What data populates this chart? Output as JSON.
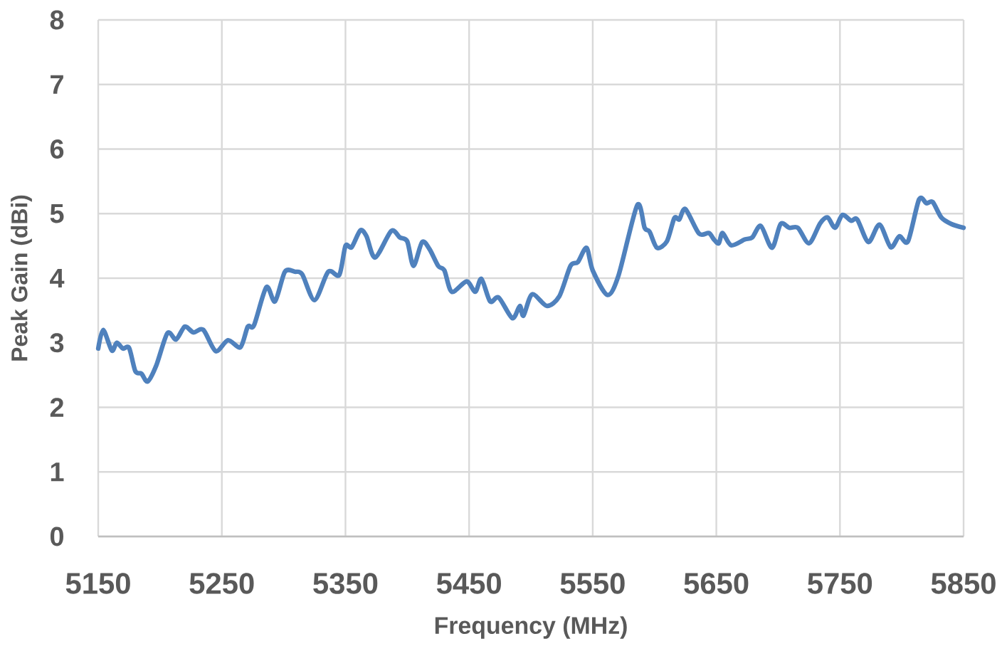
{
  "chart_data": {
    "type": "line",
    "xlabel": "Frequency (MHz)",
    "ylabel": "Peak Gain (dBi)",
    "x": [
      5150,
      5154,
      5161,
      5165,
      5170,
      5175,
      5180,
      5185,
      5190,
      5197,
      5206,
      5213,
      5220,
      5227,
      5235,
      5245,
      5255,
      5265,
      5271,
      5276,
      5286,
      5293,
      5301,
      5309,
      5315,
      5325,
      5336,
      5345,
      5350,
      5355,
      5362,
      5367,
      5374,
      5387,
      5394,
      5400,
      5405,
      5412,
      5418,
      5425,
      5430,
      5436,
      5448,
      5455,
      5460,
      5467,
      5474,
      5485,
      5491,
      5494,
      5501,
      5513,
      5523,
      5532,
      5538,
      5545,
      5550,
      5562,
      5571,
      5586,
      5592,
      5596,
      5602,
      5610,
      5616,
      5620,
      5625,
      5636,
      5644,
      5648,
      5652,
      5655,
      5662,
      5673,
      5679,
      5686,
      5695,
      5702,
      5709,
      5716,
      5725,
      5734,
      5740,
      5746,
      5752,
      5759,
      5764,
      5773,
      5782,
      5791,
      5798,
      5805,
      5814,
      5820,
      5825,
      5832,
      5840,
      5850
    ],
    "values": [
      2.91,
      3.2,
      2.88,
      3.0,
      2.91,
      2.92,
      2.56,
      2.52,
      2.4,
      2.65,
      3.15,
      3.05,
      3.25,
      3.16,
      3.2,
      2.87,
      3.04,
      2.93,
      3.25,
      3.27,
      3.86,
      3.64,
      4.1,
      4.1,
      4.06,
      3.66,
      4.1,
      4.05,
      4.5,
      4.48,
      4.74,
      4.65,
      4.32,
      4.73,
      4.63,
      4.57,
      4.19,
      4.56,
      4.45,
      4.19,
      4.12,
      3.79,
      3.95,
      3.79,
      3.99,
      3.64,
      3.7,
      3.38,
      3.57,
      3.42,
      3.75,
      3.57,
      3.72,
      4.19,
      4.25,
      4.47,
      4.12,
      3.74,
      4.05,
      5.13,
      4.78,
      4.72,
      4.47,
      4.57,
      4.93,
      4.91,
      5.07,
      4.69,
      4.7,
      4.6,
      4.54,
      4.7,
      4.51,
      4.6,
      4.63,
      4.81,
      4.47,
      4.84,
      4.78,
      4.78,
      4.54,
      4.85,
      4.94,
      4.78,
      4.98,
      4.89,
      4.91,
      4.56,
      4.83,
      4.48,
      4.65,
      4.57,
      5.22,
      5.16,
      5.18,
      4.94,
      4.84,
      4.78
    ],
    "color": "#4f81bd",
    "line_style": "solid",
    "xlim": [
      5150,
      5850
    ],
    "ylim": [
      0,
      8
    ],
    "xticks": [
      5150,
      5250,
      5350,
      5450,
      5550,
      5650,
      5750,
      5850
    ],
    "yticks": [
      0,
      1,
      2,
      3,
      4,
      5,
      6,
      7,
      8
    ],
    "grid": true
  }
}
